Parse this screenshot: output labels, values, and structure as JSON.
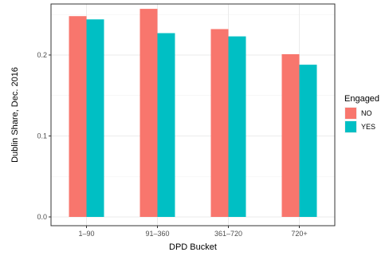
{
  "chart_data": {
    "type": "bar",
    "categories": [
      "1–90",
      "91–360",
      "361–720",
      "720+"
    ],
    "series": [
      {
        "name": "NO",
        "values": [
          0.248,
          0.257,
          0.232,
          0.201
        ]
      },
      {
        "name": "YES",
        "values": [
          0.244,
          0.227,
          0.223,
          0.188
        ]
      }
    ],
    "xlabel": "DPD Bucket",
    "ylabel": "Dublin Share, Dec. 2016",
    "ylim": [
      0,
      0.263
    ],
    "yticks": [
      0.0,
      0.1,
      0.2
    ],
    "ytick_labels": [
      "0.0",
      "0.1",
      "0.2"
    ],
    "legend": {
      "title": "Engaged",
      "placement": "right",
      "entries": [
        "NO",
        "YES"
      ]
    },
    "grid": true,
    "colors": {
      "NO": "#f8766d",
      "YES": "#00bfc4"
    }
  }
}
